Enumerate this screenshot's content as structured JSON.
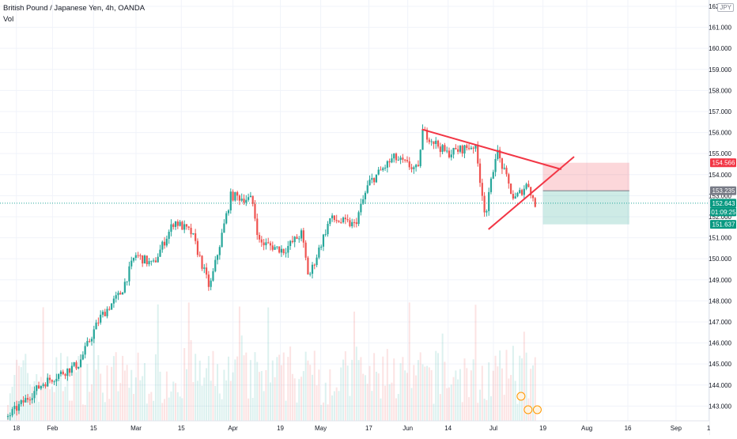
{
  "header": {
    "title": "British Pound / Japanese Yen, 4h, OANDA",
    "vol_label": "Vol",
    "currency": "JPY"
  },
  "colors": {
    "up": "#26a69a",
    "down": "#ef5350",
    "trendline": "#f23645",
    "grid": "#f0f3fa",
    "current_line": "#26a69a",
    "stop_zone": "rgba(242,54,69,0.2)",
    "target_zone": "rgba(8,153,129,0.2)"
  },
  "chart_data": {
    "type": "candlestick",
    "title": "British Pound / Japanese Yen, 4h, OANDA",
    "y_axis": {
      "ticks": [
        "143.000",
        "144.000",
        "145.000",
        "146.000",
        "147.000",
        "148.000",
        "149.000",
        "150.000",
        "151.000",
        "152.000",
        "153.000",
        "154.000",
        "155.000",
        "156.000",
        "157.000",
        "158.000",
        "159.000",
        "160.000",
        "161.000",
        "162.000"
      ],
      "range": [
        142.3,
        162.3
      ]
    },
    "x_axis": {
      "ticks": [
        "18",
        "Feb",
        "15",
        "Mar",
        "15",
        "Apr",
        "19",
        "May",
        "17",
        "Jun",
        "14",
        "Jul",
        "19",
        "Aug",
        "16",
        "Sep",
        "1"
      ]
    },
    "grid": true,
    "price_labels": [
      {
        "text": "154.566",
        "value": 154.566,
        "style": "stop"
      },
      {
        "text": "153.235",
        "value": 153.235,
        "style": "entry"
      },
      {
        "text": "152.643",
        "value": 152.643,
        "style": "current"
      },
      {
        "text": "01:09:25",
        "value": 152.643,
        "style": "countdown"
      },
      {
        "text": "151.637",
        "value": 151.637,
        "style": "target"
      }
    ],
    "path": [
      {
        "t": 0.0,
        "p": 142.5
      },
      {
        "t": 0.05,
        "p": 144.1
      },
      {
        "t": 0.1,
        "p": 145.0
      },
      {
        "t": 0.13,
        "p": 147.2
      },
      {
        "t": 0.16,
        "p": 148.4
      },
      {
        "t": 0.18,
        "p": 150.2
      },
      {
        "t": 0.205,
        "p": 149.7
      },
      {
        "t": 0.235,
        "p": 151.8
      },
      {
        "t": 0.26,
        "p": 151.2
      },
      {
        "t": 0.285,
        "p": 148.6
      },
      {
        "t": 0.315,
        "p": 153.0
      },
      {
        "t": 0.345,
        "p": 152.8
      },
      {
        "t": 0.355,
        "p": 150.8
      },
      {
        "t": 0.39,
        "p": 150.4
      },
      {
        "t": 0.415,
        "p": 151.2
      },
      {
        "t": 0.425,
        "p": 149.1
      },
      {
        "t": 0.455,
        "p": 151.9
      },
      {
        "t": 0.49,
        "p": 151.6
      },
      {
        "t": 0.51,
        "p": 153.6
      },
      {
        "t": 0.545,
        "p": 154.8
      },
      {
        "t": 0.58,
        "p": 154.2
      },
      {
        "t": 0.585,
        "p": 156.1
      },
      {
        "t": 0.62,
        "p": 155.0
      },
      {
        "t": 0.66,
        "p": 155.4
      },
      {
        "t": 0.675,
        "p": 152.0
      },
      {
        "t": 0.69,
        "p": 155.2
      },
      {
        "t": 0.715,
        "p": 152.8
      },
      {
        "t": 0.735,
        "p": 153.6
      },
      {
        "t": 0.745,
        "p": 152.5
      }
    ],
    "annotations": {
      "trendlines": [
        {
          "from": {
            "t": 0.585,
            "p": 156.15
          },
          "to": {
            "t": 0.782,
            "p": 154.25
          }
        },
        {
          "from": {
            "t": 0.679,
            "p": 151.4
          },
          "to": {
            "t": 0.8,
            "p": 154.85
          }
        }
      ],
      "position": {
        "t_start": 0.756,
        "t_end": 0.878,
        "stop": 154.566,
        "entry": 153.235,
        "target": 151.637
      },
      "current_price": 152.643
    }
  }
}
